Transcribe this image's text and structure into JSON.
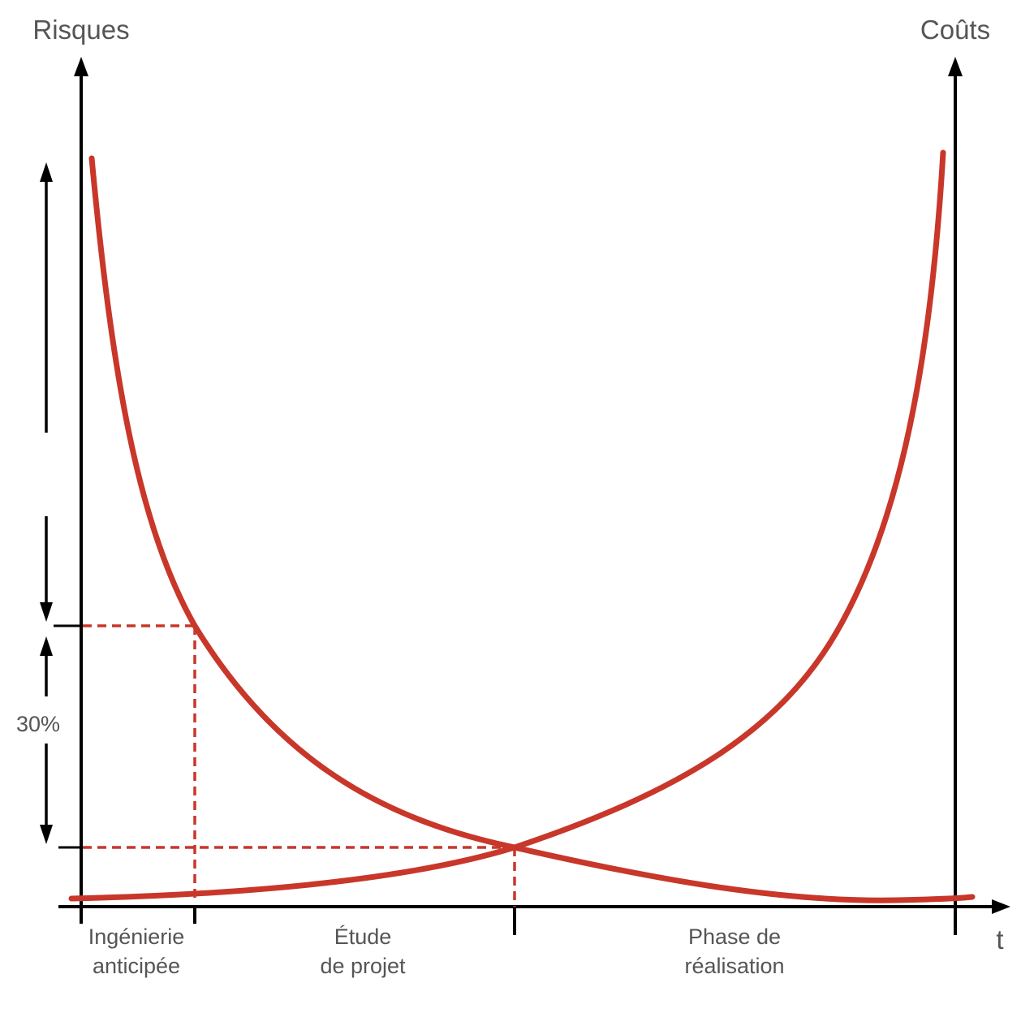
{
  "axes": {
    "left_label": "Risques",
    "right_label": "Coûts",
    "time_label": "t"
  },
  "percentage_label": "30%",
  "phases": [
    {
      "line1": "Ingénierie",
      "line2": "anticipée"
    },
    {
      "line1": "Étude",
      "line2": "de projet"
    },
    {
      "line1": "Phase de",
      "line2": "réalisation"
    }
  ],
  "colors": {
    "curve": "#c8372a",
    "axis": "#000000",
    "text": "#555555"
  }
}
